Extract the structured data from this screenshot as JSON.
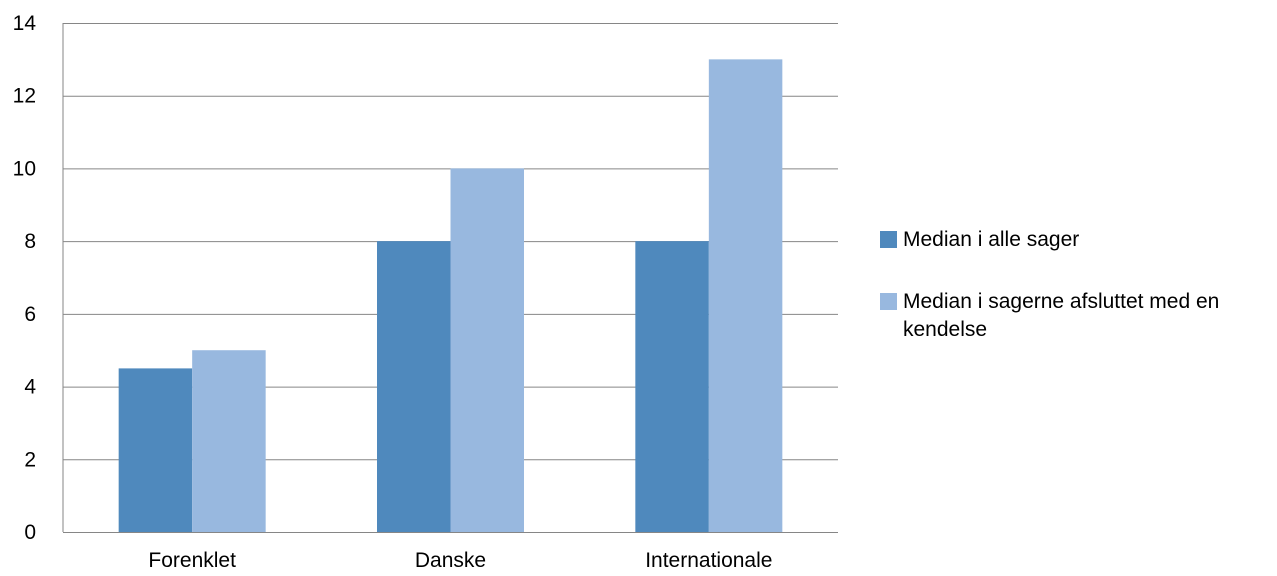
{
  "chart_data": {
    "type": "bar",
    "categories": [
      "Forenklet",
      "Danske",
      "Internationale"
    ],
    "series": [
      {
        "name": "Median i alle sager",
        "values": [
          4.5,
          8,
          8
        ],
        "color": "#4F89BD"
      },
      {
        "name": "Median i sagerne afsluttet med en kendelse",
        "values": [
          5,
          10,
          13
        ],
        "color": "#98B8DF"
      }
    ],
    "yticks": [
      0,
      2,
      4,
      6,
      8,
      10,
      12,
      14
    ],
    "ylim": [
      0,
      14
    ],
    "grid": true,
    "legend_position": "right",
    "gridline_color": "#868686"
  }
}
